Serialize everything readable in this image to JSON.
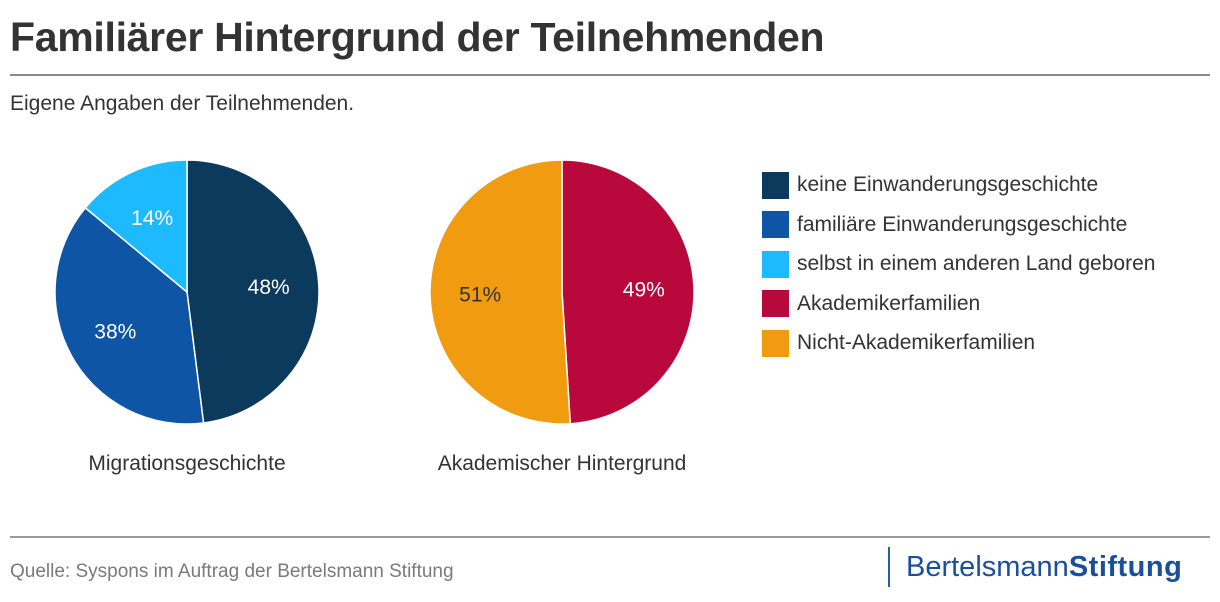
{
  "header": {
    "title": "Familiärer Hintergrund der Teilnehmenden",
    "subtitle": "Eigene Angaben der Teilnehmenden."
  },
  "chart_data": [
    {
      "type": "pie",
      "title": "Migrationsgeschichte",
      "slices": [
        {
          "label": "keine Einwanderungsgeschichte",
          "value": 48,
          "display": "48%",
          "color": "#0b3a5c",
          "text_color": "#ffffff"
        },
        {
          "label": "familiäre Einwanderungsgeschichte",
          "value": 38,
          "display": "38%",
          "color": "#0f55a6",
          "text_color": "#ffffff"
        },
        {
          "label": "selbst in einem anderen Land geboren",
          "value": 14,
          "display": "14%",
          "color": "#1ebaff",
          "text_color": "#ffffff"
        }
      ]
    },
    {
      "type": "pie",
      "title": "Akademischer Hintergrund",
      "slices": [
        {
          "label": "Akademikerfamilien",
          "value": 49,
          "display": "49%",
          "color": "#b9083c",
          "text_color": "#ffffff"
        },
        {
          "label": "Nicht-Akademikerfamilien",
          "value": 51,
          "display": "51%",
          "color": "#f09b10",
          "text_color": "#333333"
        }
      ]
    }
  ],
  "legend": [
    {
      "label": "keine Einwanderungsgeschichte",
      "color": "#0b3a5c"
    },
    {
      "label": "familiäre Einwanderungsgeschichte",
      "color": "#0f55a6"
    },
    {
      "label": "selbst in einem anderen Land geboren",
      "color": "#1ebaff"
    },
    {
      "label": "Akademikerfamilien",
      "color": "#b9083c"
    },
    {
      "label": "Nicht-Akademikerfamilien",
      "color": "#f09b10"
    }
  ],
  "footer": {
    "source": "Quelle: Syspons im Auftrag der Bertelsmann Stiftung",
    "logo_part1": "Bertelsmann",
    "logo_part2": "Stiftung"
  }
}
